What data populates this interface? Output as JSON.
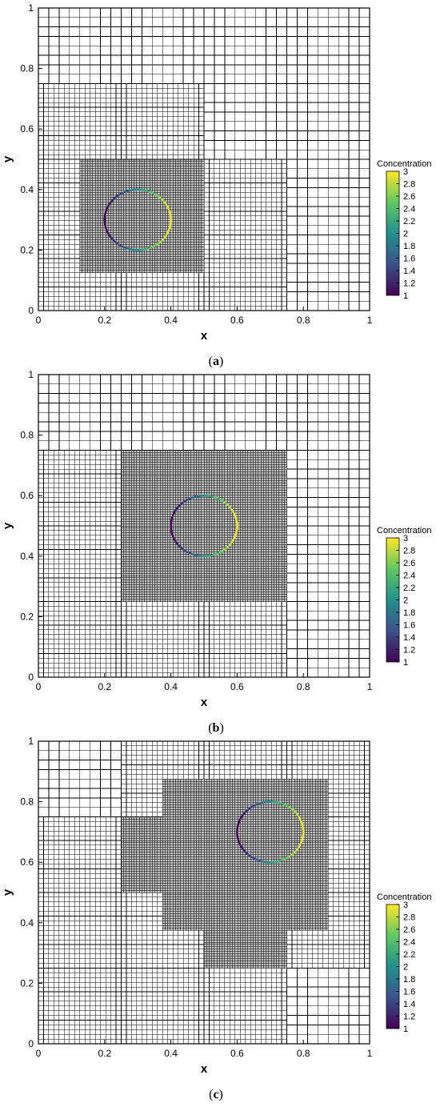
{
  "chart_data": [
    {
      "type": "heatmap",
      "panel_label": "a",
      "xlabel": "x",
      "ylabel": "y",
      "xlim": [
        0,
        1
      ],
      "ylim": [
        0,
        1
      ],
      "x_ticks": [
        "0",
        "0.2",
        "0.4",
        "0.6",
        "0.8",
        "1"
      ],
      "y_ticks": [
        "0",
        "0.2",
        "0.4",
        "0.6",
        "0.8",
        "1"
      ],
      "mesh_refinement_levels": [
        {
          "level": 1,
          "cell_size": 0.03125,
          "x_range": [
            0,
            1
          ],
          "y_range": [
            0,
            1
          ]
        },
        {
          "level": 2,
          "cell_size": 0.015625,
          "x_range": [
            0,
            0.75
          ],
          "y_range": [
            0,
            0.5
          ]
        },
        {
          "level": 2,
          "cell_size": 0.015625,
          "x_range": [
            0,
            0.5
          ],
          "y_range": [
            0.5,
            0.75
          ]
        },
        {
          "level": 3,
          "cell_size": 0.0078125,
          "x_range": [
            0.125,
            0.5
          ],
          "y_range": [
            0.125,
            0.5
          ]
        }
      ],
      "interface_circle": {
        "center": [
          0.3,
          0.3
        ],
        "radius": 0.1
      },
      "colorbar": {
        "title": "Concentration",
        "min": 1,
        "max": 3,
        "ticks": [
          "3",
          "2.8",
          "2.6",
          "2.4",
          "2.2",
          "2",
          "1.8",
          "1.6",
          "1.4",
          "1.2",
          "1"
        ],
        "colormap": "viridis"
      }
    },
    {
      "type": "heatmap",
      "panel_label": "b",
      "xlabel": "x",
      "ylabel": "y",
      "xlim": [
        0,
        1
      ],
      "ylim": [
        0,
        1
      ],
      "x_ticks": [
        "0",
        "0.2",
        "0.4",
        "0.6",
        "0.8",
        "1"
      ],
      "y_ticks": [
        "0",
        "0.2",
        "0.4",
        "0.6",
        "0.8",
        "1"
      ],
      "mesh_refinement_levels": [
        {
          "level": 1,
          "cell_size": 0.03125,
          "x_range": [
            0,
            1
          ],
          "y_range": [
            0,
            1
          ]
        },
        {
          "level": 2,
          "cell_size": 0.015625,
          "x_range": [
            0,
            0.75
          ],
          "y_range": [
            0,
            0.75
          ]
        },
        {
          "level": 3,
          "cell_size": 0.0078125,
          "x_range": [
            0.25,
            0.75
          ],
          "y_range": [
            0.25,
            0.75
          ]
        }
      ],
      "interface_circle": {
        "center": [
          0.5,
          0.5
        ],
        "radius": 0.1
      },
      "colorbar": {
        "title": "Concentration",
        "min": 1,
        "max": 3,
        "ticks": [
          "3",
          "2.8",
          "2.6",
          "2.4",
          "2.2",
          "2",
          "1.8",
          "1.6",
          "1.4",
          "1.2",
          "1"
        ],
        "colormap": "viridis"
      }
    },
    {
      "type": "heatmap",
      "panel_label": "c",
      "xlabel": "x",
      "ylabel": "y",
      "xlim": [
        0,
        1
      ],
      "ylim": [
        0,
        1
      ],
      "x_ticks": [
        "0",
        "0.2",
        "0.4",
        "0.6",
        "0.8",
        "1"
      ],
      "y_ticks": [
        "0",
        "0.2",
        "0.4",
        "0.6",
        "0.8",
        "1"
      ],
      "mesh_refinement_levels": [
        {
          "level": 1,
          "cell_size": 0.03125,
          "x_range": [
            0,
            1
          ],
          "y_range": [
            0,
            1
          ]
        },
        {
          "level": 2,
          "cell_size": 0.015625,
          "x_range": [
            0,
            0.75
          ],
          "y_range": [
            0,
            0.75
          ]
        },
        {
          "level": 2,
          "cell_size": 0.015625,
          "x_range": [
            0.25,
            1
          ],
          "y_range": [
            0.25,
            1
          ]
        },
        {
          "level": 3,
          "cell_size": 0.0078125,
          "x_range": [
            0.375,
            0.875
          ],
          "y_range": [
            0.375,
            0.875
          ]
        },
        {
          "level": 3,
          "cell_size": 0.0078125,
          "x_range": [
            0.25,
            0.375
          ],
          "y_range": [
            0.5,
            0.75
          ]
        },
        {
          "level": 3,
          "cell_size": 0.0078125,
          "x_range": [
            0.5,
            0.75
          ],
          "y_range": [
            0.25,
            0.375
          ]
        }
      ],
      "interface_circle": {
        "center": [
          0.7,
          0.7
        ],
        "radius": 0.1
      },
      "colorbar": {
        "title": "Concentration",
        "min": 1,
        "max": 3,
        "ticks": [
          "3",
          "2.8",
          "2.6",
          "2.4",
          "2.2",
          "2",
          "1.8",
          "1.6",
          "1.4",
          "1.2",
          "1"
        ],
        "colormap": "viridis"
      }
    }
  ],
  "colors": {
    "viridis_stops": [
      "#440154",
      "#3b528b",
      "#21918c",
      "#5ec962",
      "#fde725"
    ],
    "mesh_line": "#000000",
    "axis": "#000000",
    "background": "#ffffff"
  }
}
